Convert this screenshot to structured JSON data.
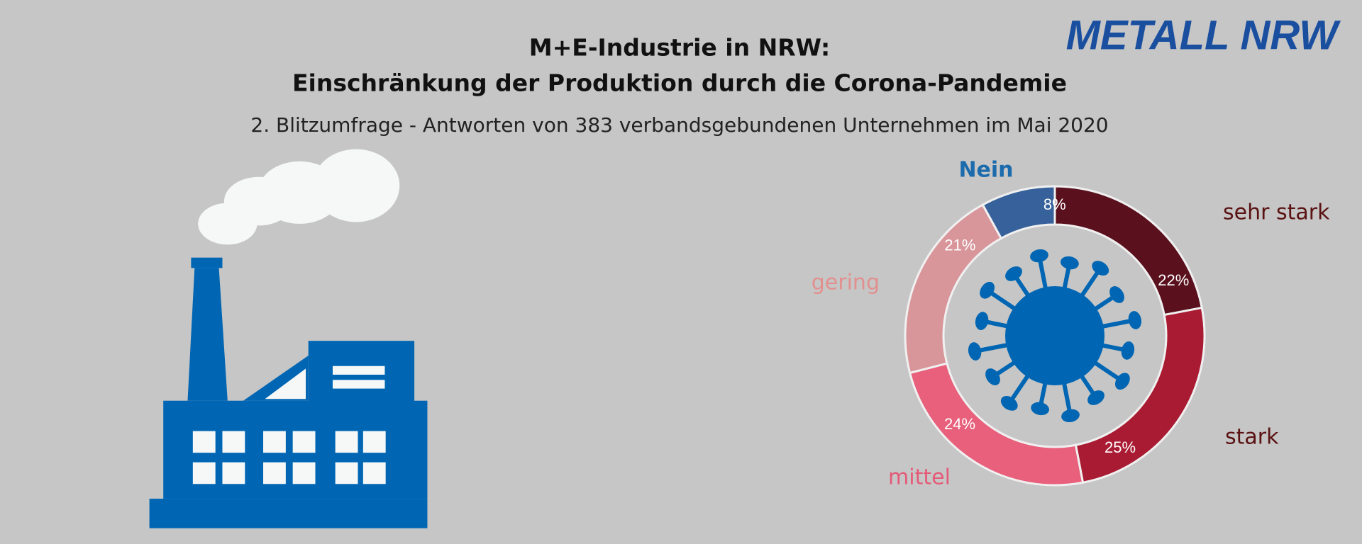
{
  "logo": "METALL NRW",
  "chart_data": {
    "type": "pie",
    "title": [
      "M+E-Industrie in NRW:",
      "Einschränkung der Produktion durch die Corona-Pandemie"
    ],
    "subtitle": "2. Blitzumfrage - Antworten von 383 verbandsgebundenen Unternehmen im Mai 2020",
    "categories": [
      "sehr stark",
      "stark",
      "mittel",
      "gering",
      "Nein"
    ],
    "values": [
      22,
      25,
      24,
      21,
      8
    ],
    "value_labels": [
      "22%",
      "25%",
      "24%",
      "21%",
      "8%"
    ],
    "colors": [
      "#5a101d",
      "#a91b32",
      "#e8607b",
      "#d8959a",
      "#36619b"
    ],
    "label_colors": [
      "#5a1212",
      "#5a1212",
      "#e45a78",
      "#e2908f",
      "#1b6bad"
    ]
  }
}
